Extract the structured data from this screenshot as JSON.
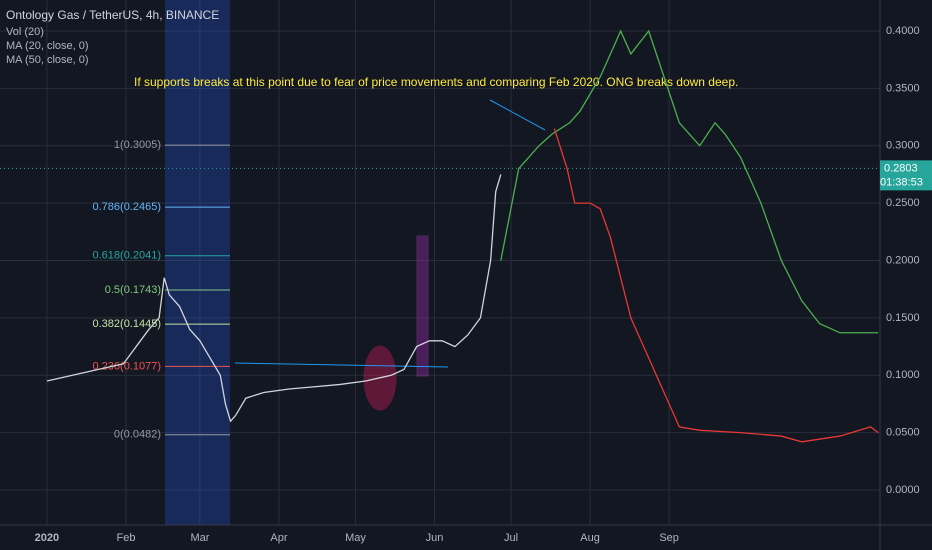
{
  "chart_data": {
    "type": "line",
    "title": "Ontology Gas / TetherUS, 4h, BINANCE",
    "indicators": [
      "Vol (20)",
      "MA (20, close, 0)",
      "MA (50, close, 0)"
    ],
    "annotation": "If supports breaks at this point due to fear of price movements and comparing Feb 2020. ONG breaks down deep.",
    "last_price": {
      "value": 0.2803,
      "label": "0.2803"
    },
    "countdown": "01:38:53",
    "xlim": [
      -18.4,
      326.7
    ],
    "ylim": [
      -0.0305,
      0.427
    ],
    "xticks": [
      {
        "value": 0,
        "label": "2020"
      },
      {
        "value": 31,
        "label": "Feb"
      },
      {
        "value": 60,
        "label": "Mar"
      },
      {
        "value": 91,
        "label": "Apr"
      },
      {
        "value": 121,
        "label": "May"
      },
      {
        "value": 152,
        "label": "Jun"
      },
      {
        "value": 182,
        "label": "Jul"
      },
      {
        "value": 213,
        "label": "Aug"
      },
      {
        "value": 244,
        "label": "Sep"
      }
    ],
    "yticks": [
      {
        "value": 0,
        "label": "0.0000"
      },
      {
        "value": 0.05,
        "label": "0.0500"
      },
      {
        "value": 0.1,
        "label": "0.1000"
      },
      {
        "value": 0.15,
        "label": "0.1500"
      },
      {
        "value": 0.2,
        "label": "0.2000"
      },
      {
        "value": 0.25,
        "label": "0.2500"
      },
      {
        "value": 0.3,
        "label": "0.3000"
      },
      {
        "value": 0.35,
        "label": "0.3500"
      },
      {
        "value": 0.4,
        "label": "0.4000"
      }
    ],
    "grid": true,
    "fib": [
      {
        "label": "1(0.3005)",
        "value": 0.3005,
        "color": "#9598a1"
      },
      {
        "label": "0.786(0.2465)",
        "value": 0.2465,
        "color": "#64b5f6"
      },
      {
        "label": "0.618(0.2041)",
        "value": 0.2041,
        "color": "#26a69a"
      },
      {
        "label": "0.5(0.1743)",
        "value": 0.1743,
        "color": "#81c784"
      },
      {
        "label": "0.382(0.1445)",
        "value": 0.1445,
        "color": "#c5e1a5"
      },
      {
        "label": "0.236(0.1077)",
        "value": 0.1077,
        "color": "#ef5350"
      },
      {
        "label": "0(0.0482)",
        "value": 0.0482,
        "color": "#9598a1"
      }
    ],
    "series": [
      {
        "color": "#d1d4dc",
        "x": [
          0,
          10,
          20,
          30,
          35,
          40,
          44,
          46,
          48,
          52,
          56,
          60,
          64,
          68,
          70,
          72,
          74,
          78,
          85,
          95,
          105,
          115,
          125,
          135,
          140,
          145,
          150,
          155,
          160,
          165,
          170,
          172,
          174,
          176,
          178
        ],
        "values": [
          0.095,
          0.1,
          0.105,
          0.11,
          0.125,
          0.14,
          0.15,
          0.185,
          0.17,
          0.16,
          0.14,
          0.13,
          0.115,
          0.1,
          0.075,
          0.06,
          0.065,
          0.08,
          0.085,
          0.088,
          0.09,
          0.092,
          0.095,
          0.1,
          0.105,
          0.125,
          0.13,
          0.13,
          0.125,
          0.135,
          0.15,
          0.175,
          0.2,
          0.26,
          0.275
        ]
      },
      {
        "color": "#4caf50",
        "x": [
          178,
          185,
          193,
          198,
          205,
          209,
          217,
          225,
          229,
          236,
          242,
          248,
          256,
          262,
          266,
          272,
          280,
          288,
          296,
          303,
          311,
          326
        ],
        "values": [
          0.2,
          0.28,
          0.3,
          0.31,
          0.32,
          0.33,
          0.36,
          0.4,
          0.38,
          0.4,
          0.36,
          0.32,
          0.3,
          0.32,
          0.31,
          0.29,
          0.25,
          0.2,
          0.165,
          0.145,
          0.137,
          0.137
        ]
      },
      {
        "color": "#e53935",
        "x": [
          199,
          204,
          207,
          213,
          217,
          221,
          229,
          237,
          245,
          248,
          256,
          272,
          288,
          296,
          311,
          323,
          326
        ],
        "values": [
          0.315,
          0.28,
          0.25,
          0.25,
          0.245,
          0.22,
          0.15,
          0.11,
          0.07,
          0.055,
          0.052,
          0.05,
          0.047,
          0.042,
          0.047,
          0.055,
          0.05
        ]
      }
    ]
  }
}
